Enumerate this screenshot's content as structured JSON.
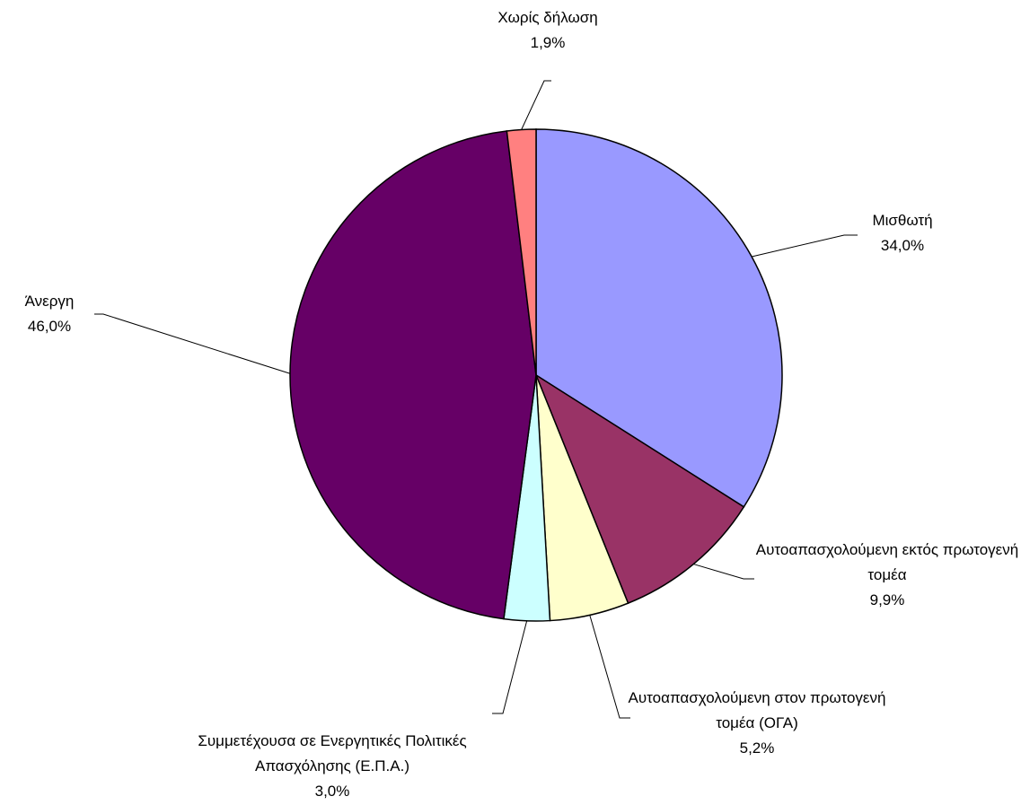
{
  "chart_data": {
    "type": "pie",
    "categories": [
      "Μισθωτή",
      "Αυτοαπασχολούμενη εκτός πρωτογενή τομέα",
      "Αυτοαπασχολούμενη στον πρωτογενή τομέα (ΟΓΑ)",
      "Συμμετέχουσα σε Ενεργητικές Πολιτικές Απασχόλησης (Ε.Π.Α.)",
      "Άνεργη",
      "Χωρίς δήλωση"
    ],
    "values": [
      34.0,
      9.9,
      5.2,
      3.0,
      46.0,
      1.9
    ],
    "value_labels": [
      "34,0%",
      "9,9%",
      "5,2%",
      "3,0%",
      "46,0%",
      "1,9%"
    ],
    "colors": [
      "#9999ff",
      "#993366",
      "#ffffcc",
      "#ccffff",
      "#660066",
      "#ff8080"
    ]
  }
}
